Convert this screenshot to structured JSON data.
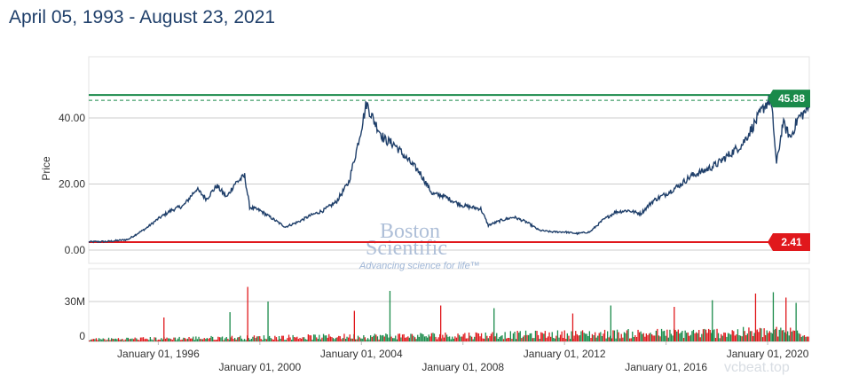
{
  "header": {
    "title": "April 05, 1993 - August 23, 2021"
  },
  "chart_data": {
    "type": "line",
    "title": "April 05, 1993 - August 23, 2021",
    "ylabel": "Price",
    "ylim": [
      0,
      52
    ],
    "price_ticks": [
      "0.00",
      "20.00",
      "40.00"
    ],
    "price_tick_values": [
      0,
      20,
      40
    ],
    "volume_ticks": [
      "0",
      "30M"
    ],
    "volume_tick_values": [
      0,
      30000000
    ],
    "x_ticks": [
      "January 01, 1996",
      "January 01, 2000",
      "January 01, 2004",
      "January 01, 2008",
      "January 01, 2012",
      "January 01, 2016",
      "January 01, 2020"
    ],
    "x_tick_years": [
      1996,
      2000,
      2004,
      2008,
      2012,
      2016,
      2020
    ],
    "x_range": [
      1993.26,
      2021.64
    ],
    "high_line": {
      "value": 45.88,
      "label": "45.88",
      "color": "#1a8a4a"
    },
    "low_line": {
      "value": 2.41,
      "label": "2.41",
      "color": "#e0181c"
    },
    "series": [
      {
        "type": "line",
        "color": "#1f3f6a",
        "x": [
          1993.26,
          1994.0,
          1994.8,
          1995.5,
          1996.0,
          1996.5,
          1997.0,
          1997.5,
          1997.9,
          1998.3,
          1998.7,
          1999.0,
          1999.4,
          1999.6,
          2000.0,
          2000.5,
          2001.0,
          2001.5,
          2002.0,
          2002.5,
          2003.0,
          2003.5,
          2003.8,
          2004.0,
          2004.2,
          2004.5,
          2004.9,
          2005.3,
          2005.8,
          2006.3,
          2006.8,
          2007.2,
          2007.7,
          2008.0,
          2008.3,
          2008.7,
          2009.0,
          2009.5,
          2010.0,
          2010.5,
          2011.0,
          2011.5,
          2012.0,
          2012.5,
          2013.0,
          2013.5,
          2014.0,
          2014.5,
          2015.0,
          2015.5,
          2016.0,
          2016.5,
          2017.0,
          2017.5,
          2018.0,
          2018.5,
          2019.0,
          2019.5,
          2019.9,
          2020.1,
          2020.2,
          2020.35,
          2020.6,
          2020.9,
          2021.2,
          2021.5,
          2021.64
        ],
        "y": [
          2.5,
          2.6,
          3.2,
          6.5,
          9.5,
          12.0,
          13.5,
          18.5,
          15.5,
          19.5,
          16.0,
          20.0,
          22.5,
          13.0,
          12.0,
          9.5,
          7.0,
          8.5,
          10.5,
          12.0,
          14.5,
          20.5,
          30.0,
          37.0,
          44.5,
          39.0,
          33.5,
          32.0,
          27.5,
          23.5,
          17.0,
          16.5,
          14.5,
          13.5,
          13.0,
          12.5,
          7.5,
          9.0,
          10.0,
          8.5,
          6.0,
          5.5,
          5.5,
          5.0,
          5.5,
          9.0,
          11.5,
          12.0,
          11.0,
          15.0,
          17.0,
          19.5,
          22.5,
          24.0,
          26.0,
          29.0,
          32.0,
          38.5,
          44.0,
          45.5,
          40.0,
          26.0,
          38.5,
          34.0,
          40.0,
          42.0,
          43.0
        ]
      }
    ],
    "volume": {
      "up_color": "#1a8a4a",
      "down_color": "#e0181c",
      "spikes_x": [
        1996.2,
        1998.8,
        1999.5,
        2000.3,
        2003.7,
        2005.1,
        2007.1,
        2009.2,
        2012.3,
        2013.8,
        2016.3,
        2017.8,
        2019.5,
        2020.2,
        2020.7,
        2021.1
      ],
      "spikes_v": [
        18000000,
        22000000,
        41000000,
        30000000,
        23000000,
        38000000,
        27000000,
        25000000,
        21000000,
        27000000,
        26000000,
        31000000,
        36000000,
        37000000,
        33000000,
        29000000
      ]
    }
  },
  "watermark": {
    "line1": "Boston",
    "line2": "Scientific",
    "tagline": "Advancing science for life™"
  },
  "corner_mark": {
    "text": "vcbeat.top"
  }
}
